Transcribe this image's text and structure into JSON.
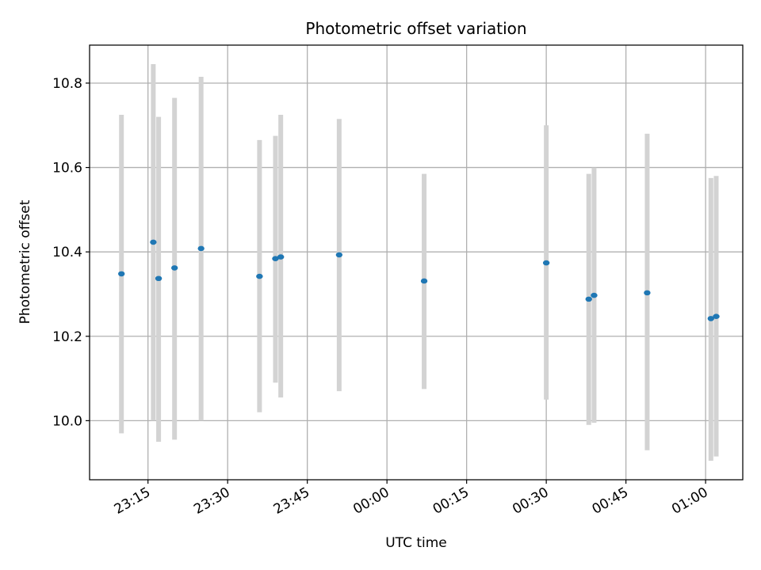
{
  "chart_data": {
    "type": "scatter",
    "title": "Photometric offset variation",
    "xlabel": "UTC time",
    "ylabel": "Photometric offset",
    "x_ticks": [
      "23:15",
      "23:30",
      "23:45",
      "00:00",
      "00:15",
      "00:30",
      "00:45",
      "01:00"
    ],
    "y_ticks": [
      "10.0",
      "10.2",
      "10.4",
      "10.6",
      "10.8"
    ],
    "xlim": [
      "23:04",
      "01:07"
    ],
    "ylim": [
      9.86,
      10.89
    ],
    "grid": true,
    "marker_color": "#1f77b4",
    "errorbar_color": "#d3d3d3",
    "points": [
      {
        "x": "23:10",
        "y": 10.348,
        "ylow": 9.97,
        "yhigh": 10.725
      },
      {
        "x": "23:16",
        "y": 10.423,
        "ylow": 10.0,
        "yhigh": 10.845
      },
      {
        "x": "23:17",
        "y": 10.337,
        "ylow": 9.95,
        "yhigh": 10.72
      },
      {
        "x": "23:20",
        "y": 10.362,
        "ylow": 9.955,
        "yhigh": 10.765
      },
      {
        "x": "23:25",
        "y": 10.408,
        "ylow": 10.0,
        "yhigh": 10.815
      },
      {
        "x": "23:36",
        "y": 10.342,
        "ylow": 10.02,
        "yhigh": 10.665
      },
      {
        "x": "23:39",
        "y": 10.384,
        "ylow": 10.09,
        "yhigh": 10.675
      },
      {
        "x": "23:40",
        "y": 10.388,
        "ylow": 10.055,
        "yhigh": 10.725
      },
      {
        "x": "23:51",
        "y": 10.393,
        "ylow": 10.07,
        "yhigh": 10.715
      },
      {
        "x": "00:07",
        "y": 10.331,
        "ylow": 10.075,
        "yhigh": 10.585
      },
      {
        "x": "00:30",
        "y": 10.374,
        "ylow": 10.05,
        "yhigh": 10.7
      },
      {
        "x": "00:38",
        "y": 10.288,
        "ylow": 9.99,
        "yhigh": 10.585
      },
      {
        "x": "00:39",
        "y": 10.297,
        "ylow": 9.995,
        "yhigh": 10.6
      },
      {
        "x": "00:49",
        "y": 10.303,
        "ylow": 9.93,
        "yhigh": 10.68
      },
      {
        "x": "01:01",
        "y": 10.242,
        "ylow": 9.905,
        "yhigh": 10.575
      },
      {
        "x": "01:02",
        "y": 10.247,
        "ylow": 9.915,
        "yhigh": 10.58
      }
    ]
  }
}
